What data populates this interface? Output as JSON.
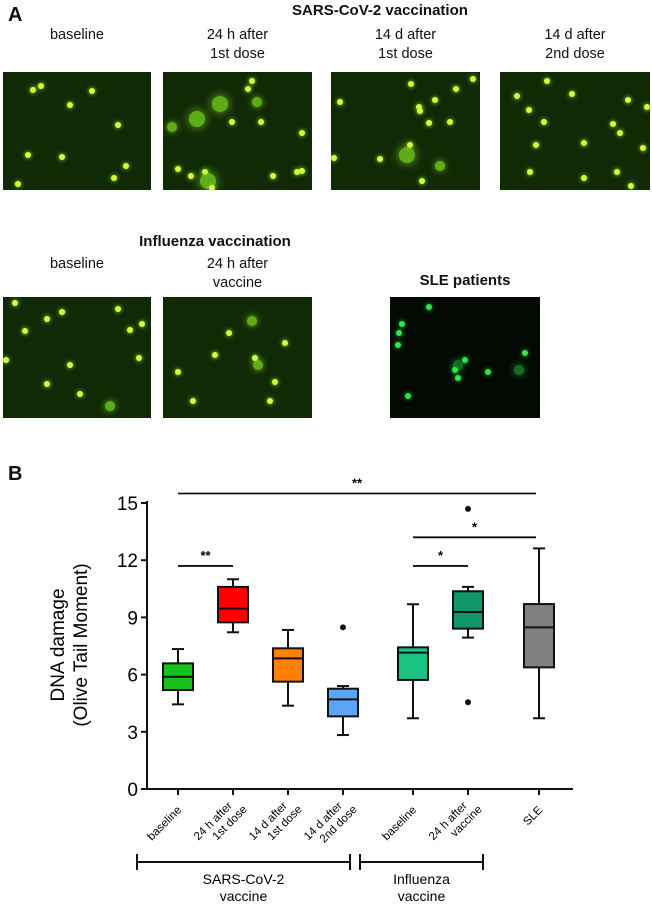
{
  "panel_a": {
    "letter": "A",
    "sars_title": "SARS-CoV-2  vaccination",
    "sars_images": [
      {
        "line1": "",
        "line2": "baseline"
      },
      {
        "line1": "24 h after",
        "line2": "1st dose"
      },
      {
        "line1": "14 d after",
        "line2": "1st dose"
      },
      {
        "line1": "14 d after",
        "line2": "2nd dose"
      }
    ],
    "flu_title": "Influenza vaccination",
    "flu_images": [
      {
        "line1": "",
        "line2": "baseline"
      },
      {
        "line1": "24 h after",
        "line2": "vaccine"
      }
    ],
    "sle_title": "SLE patients"
  },
  "panel_b": {
    "letter": "B"
  },
  "chart_data": {
    "type": "box",
    "ylabel_line1": "DNA damage",
    "ylabel_line2": "(Olive Tail Moment)",
    "ylim": [
      0,
      15
    ],
    "yticks": [
      "0",
      "3",
      "6",
      "9",
      "12",
      "15"
    ],
    "categories": [
      "baseline",
      "24 h after 1st dose",
      "14 d after 1st dose",
      "14 d after 2nd dose",
      "baseline",
      "24 h after vaccine",
      "SLE"
    ],
    "category_lines": [
      [
        "baseline"
      ],
      [
        "24 h after",
        "1st dose"
      ],
      [
        "14 d after",
        "1st dose"
      ],
      [
        "14 d after",
        "2nd dose"
      ],
      [
        "baseline"
      ],
      [
        "24 h after",
        "vaccine"
      ],
      [
        "SLE"
      ]
    ],
    "boxes": [
      {
        "min": 4.44,
        "q1": 5.19,
        "median": 5.89,
        "q3": 6.59,
        "max": 7.34,
        "outliers": [],
        "color": "#19c21a"
      },
      {
        "min": 8.22,
        "q1": 8.74,
        "median": 9.46,
        "q3": 10.6,
        "max": 11.0,
        "outliers": [],
        "color": "#ff0000"
      },
      {
        "min": 4.37,
        "q1": 5.63,
        "median": 6.85,
        "q3": 7.38,
        "max": 8.34,
        "outliers": [],
        "color": "#ff8000"
      },
      {
        "min": 2.83,
        "q1": 3.81,
        "median": 4.7,
        "q3": 5.26,
        "max": 5.4,
        "outliers": [
          8.48
        ],
        "color": "#5aa5f5"
      },
      {
        "min": 3.71,
        "q1": 5.72,
        "median": 7.15,
        "q3": 7.43,
        "max": 9.69,
        "outliers": [],
        "color": "#19c483"
      },
      {
        "min": 7.94,
        "q1": 8.41,
        "median": 9.28,
        "q3": 10.37,
        "max": 10.6,
        "outliers": [
          14.69,
          4.55
        ],
        "color": "#11966a"
      },
      {
        "min": 3.71,
        "q1": 6.38,
        "median": 8.48,
        "q3": 9.7,
        "max": 12.62,
        "outliers": [],
        "color": "#808080"
      }
    ],
    "significance": [
      {
        "from": 0,
        "to": 6,
        "y": 15.5,
        "label": "**"
      },
      {
        "from": 0,
        "to": 1,
        "y": 11.7,
        "label": "**"
      },
      {
        "from": 4,
        "to": 5,
        "y": 11.7,
        "label": "*"
      },
      {
        "from": 4,
        "to": 6,
        "y": 13.2,
        "label": "*"
      }
    ],
    "groups": [
      {
        "line1": "SARS-CoV-2",
        "line2": "vaccine"
      },
      {
        "line1": "Influenza",
        "line2": "vaccine"
      }
    ]
  }
}
